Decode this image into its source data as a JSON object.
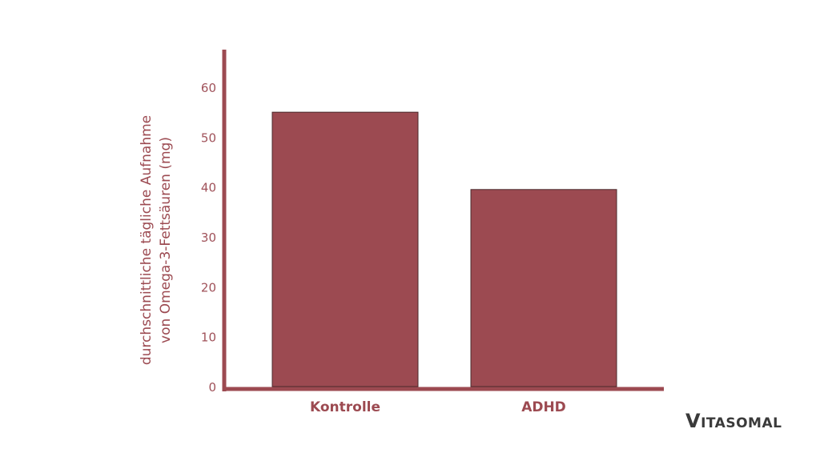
{
  "chart_data": {
    "type": "bar",
    "categories": [
      "Kontrolle",
      "ADHD"
    ],
    "values": [
      55,
      39.5
    ],
    "title": "",
    "xlabel": "",
    "ylabel_lines": [
      "durchschnittliche tägliche Aufnahme",
      "von Omega-3-Fettsäuren (mg)"
    ],
    "ylim": [
      0,
      60
    ],
    "yticks": [
      0,
      10,
      20,
      30,
      40,
      50,
      60
    ],
    "grid": false,
    "colors": {
      "bar": "#9c4a51",
      "bar_edge": "#4a2a2c",
      "axis": "#9c4a51",
      "text": "#9c4a51"
    }
  },
  "logo": {
    "first": "V",
    "rest": "ITASOMAL"
  }
}
